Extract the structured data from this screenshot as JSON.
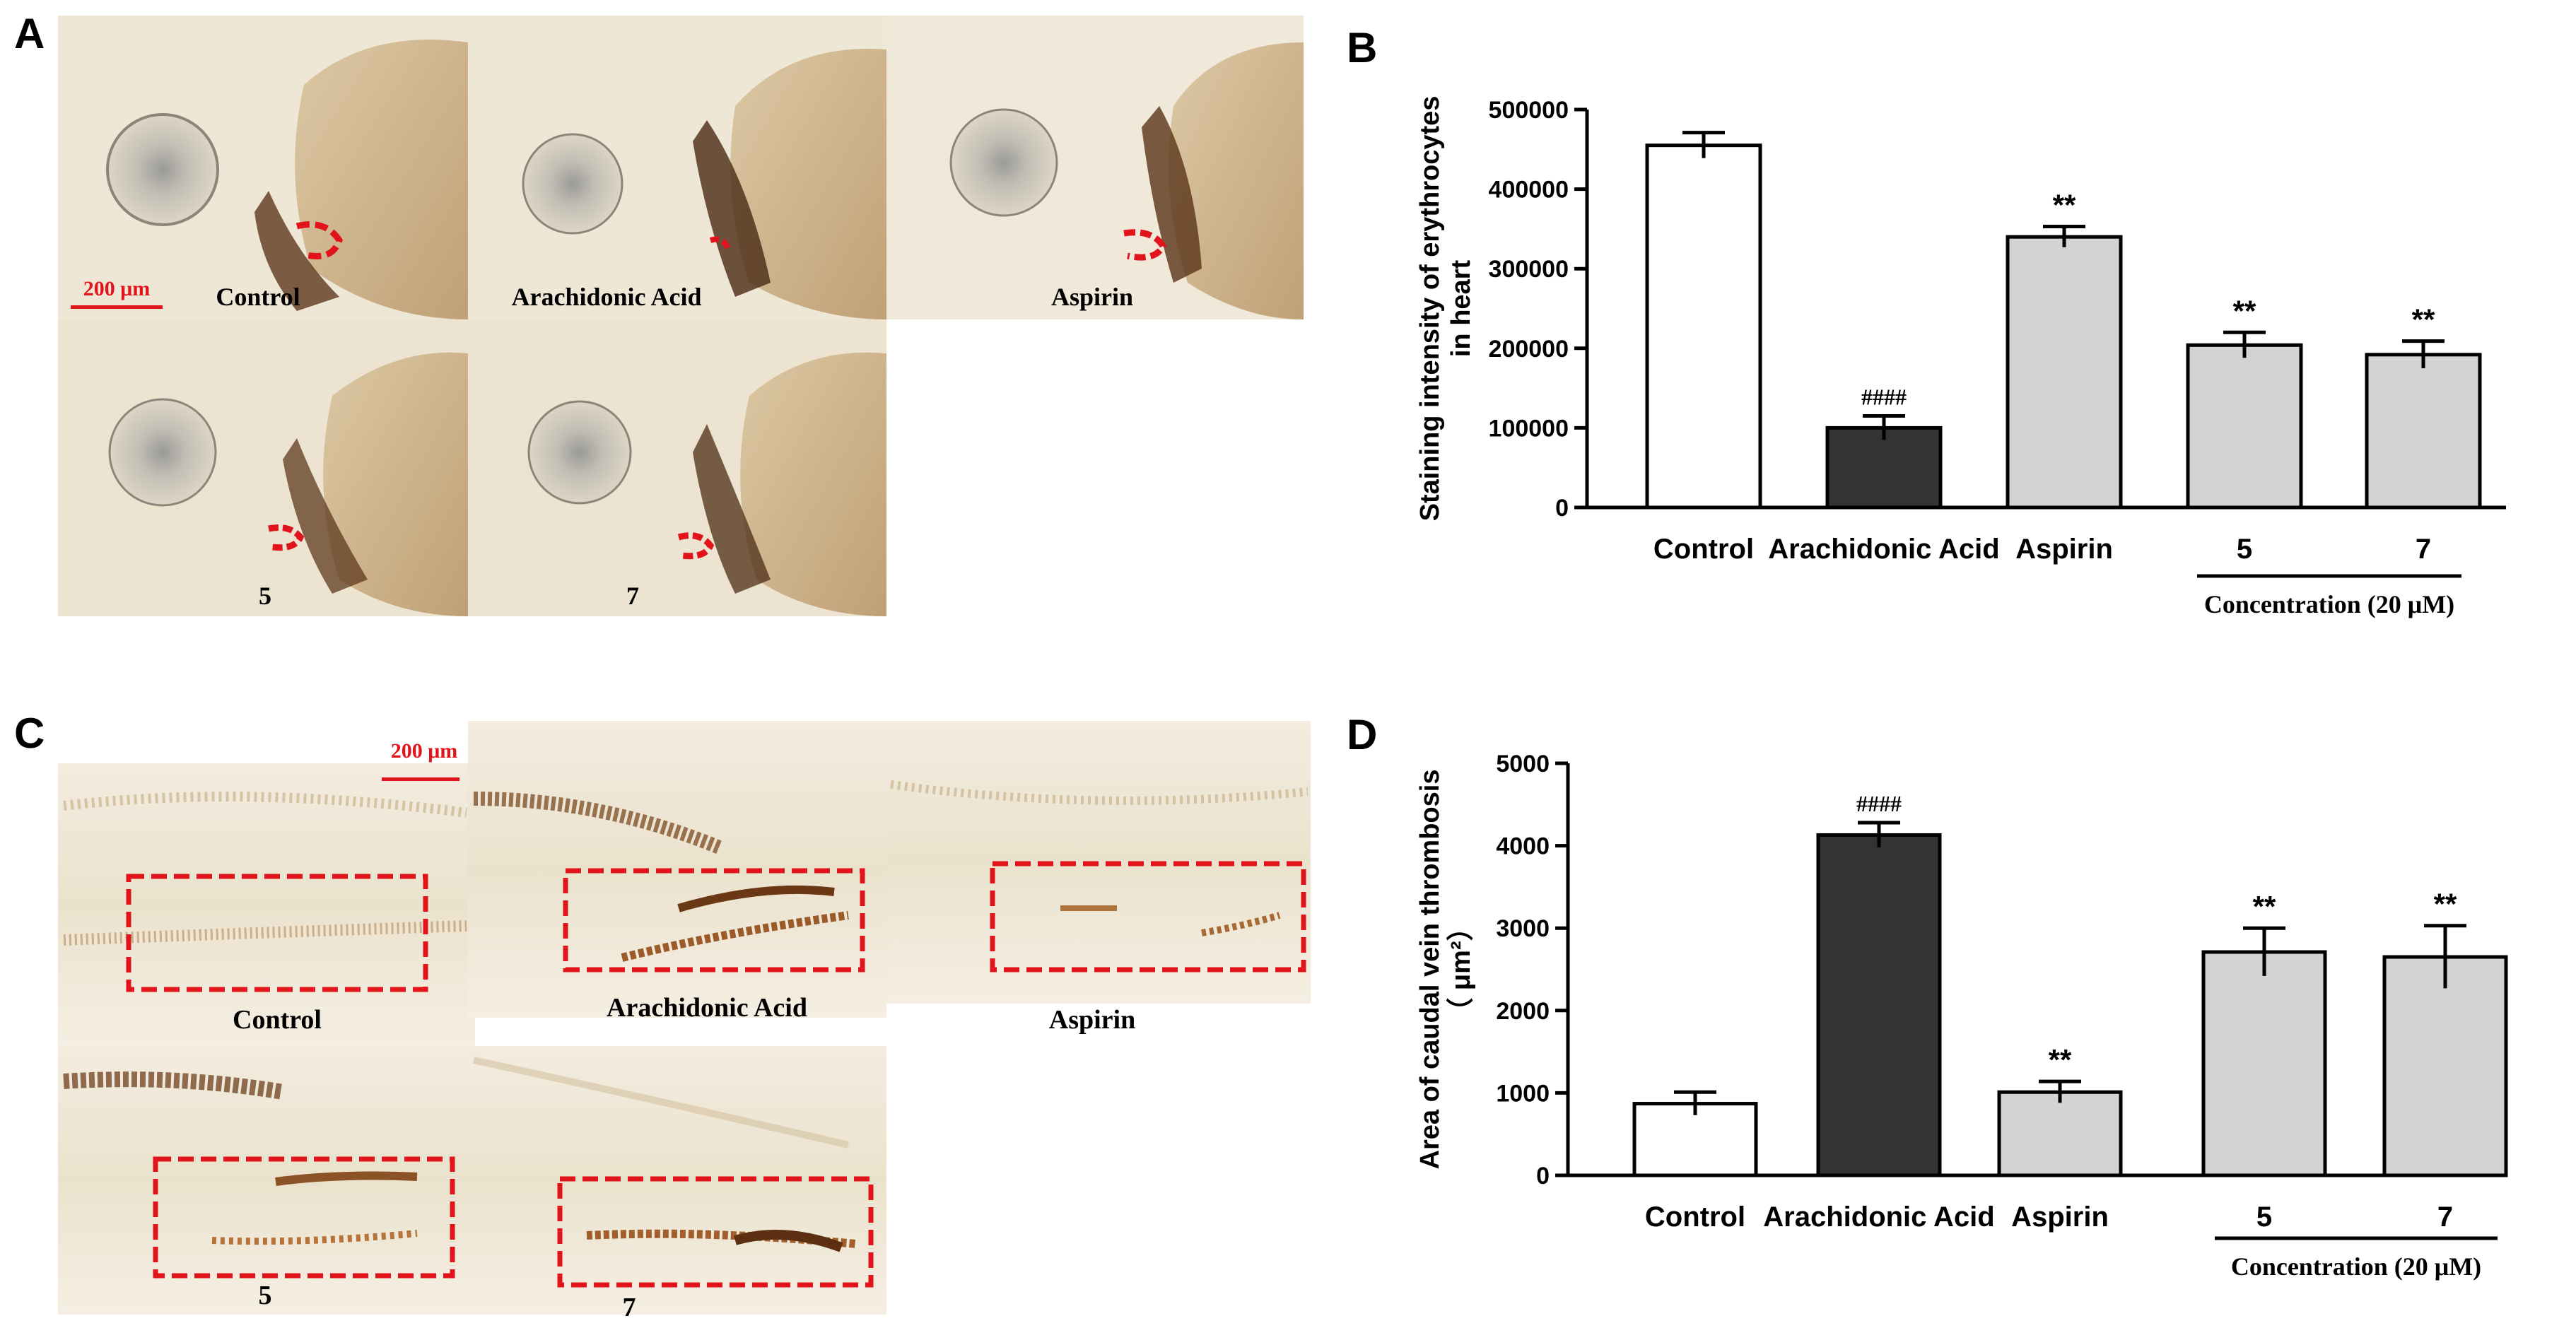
{
  "panels": {
    "a": {
      "letter": "A",
      "labels": [
        "Control",
        "Arachidonic Acid",
        "Aspirin",
        "5",
        "7"
      ],
      "scale_bar": "200 μm"
    },
    "c": {
      "letter": "C",
      "labels": [
        "Control",
        "Arachidonic Acid",
        "Aspirin",
        "5",
        "7"
      ],
      "scale_bar": "200 μm"
    },
    "b": {
      "letter": "B"
    },
    "d": {
      "letter": "D"
    }
  },
  "colors": {
    "control_fill": "#ffffff",
    "arachidonic_fill": "#333333",
    "treated_fill": "#d3d3d3",
    "outline_red": "#e0141a",
    "photo_bg": "#efe6d2"
  },
  "chart_data": [
    {
      "id": "B",
      "type": "bar",
      "categories": [
        "Control",
        "Arachidonic Acid",
        "Aspirin",
        "5",
        "7"
      ],
      "values": [
        455000,
        100000,
        340000,
        204000,
        192000
      ],
      "errors": [
        16000,
        15000,
        13000,
        16000,
        17000
      ],
      "annotations": [
        "",
        "####",
        "**",
        "**",
        "**"
      ],
      "ylabel": "Staining intensity of erythrocytes",
      "ylabel2": "in heart",
      "ylim": [
        0,
        500000
      ],
      "yticks": [
        0,
        100000,
        200000,
        300000,
        400000,
        500000
      ],
      "concentration_label": "Concentration (20 μM)"
    },
    {
      "id": "D",
      "type": "bar",
      "categories": [
        "Control",
        "Arachidonic Acid",
        "Aspirin",
        "5",
        "7"
      ],
      "values": [
        870,
        4130,
        1010,
        2710,
        2650
      ],
      "errors": [
        140,
        150,
        130,
        290,
        380
      ],
      "annotations": [
        "",
        "####",
        "**",
        "**",
        "**"
      ],
      "ylabel": "Area of caudal vein thrombosis",
      "ylabel2": "（ μm²）",
      "ylim": [
        0,
        5000
      ],
      "yticks": [
        0,
        1000,
        2000,
        3000,
        4000,
        5000
      ],
      "concentration_label": "Concentration (20 μM)"
    }
  ]
}
